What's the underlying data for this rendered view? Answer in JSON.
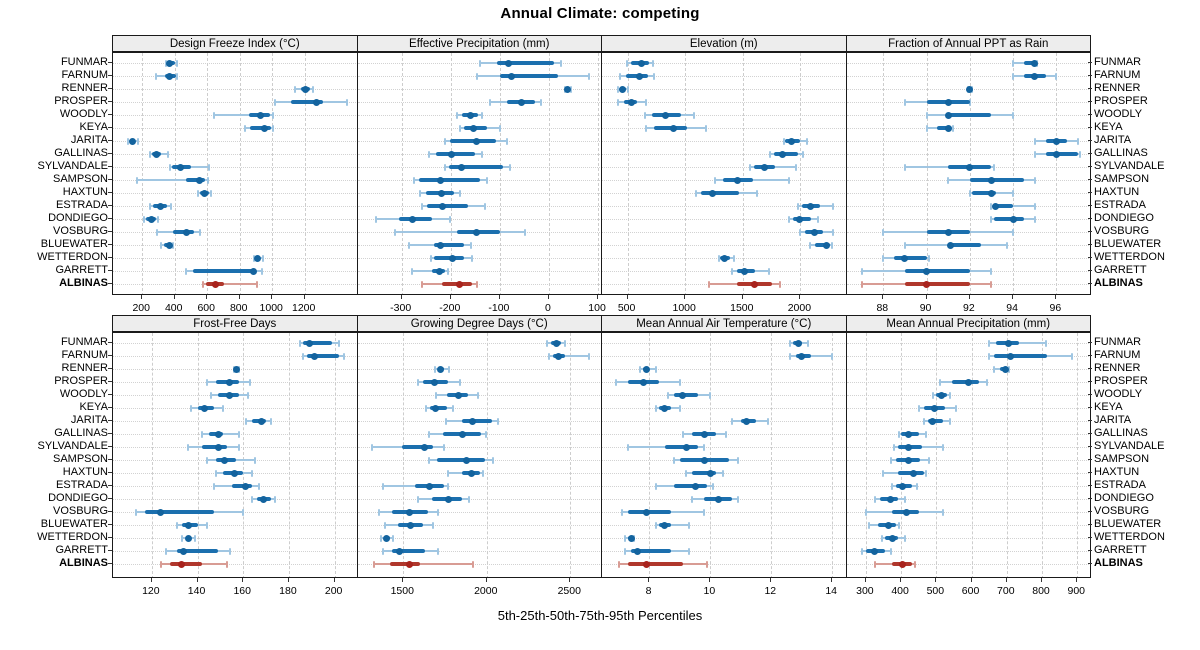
{
  "title": "Annual Climate: competing",
  "xlabel": "5th-25th-50th-75th-95th Percentiles",
  "percentiles": [
    5,
    25,
    50,
    75,
    95
  ],
  "sites": [
    "FUNMAR",
    "FARNUM",
    "RENNER",
    "PROSPER",
    "WOODLY",
    "KEYA",
    "JARITA",
    "GALLINAS",
    "SYLVANDALE",
    "SAMPSON",
    "HAXTUN",
    "ESTRADA",
    "DONDIEGO",
    "VOSBURG",
    "BLUEWATER",
    "WETTERDON",
    "GARRETT",
    "ALBINAS"
  ],
  "highlight_site": "ALBINAS",
  "colors": {
    "blue": "#1b6fae",
    "blue_light": "#a0c6e2",
    "blue_dot": "#13639e",
    "red": "#b0372c",
    "red_light": "#d89c94",
    "red_dot": "#a8231d",
    "strip_bg": "#ededed",
    "panel_border": "#1a1a1a",
    "grid_v": "#cdcdcd",
    "grid_h": "#d2d2d2",
    "axis": "#333333"
  },
  "chart_data": [
    {
      "type": "interval-dotplot",
      "row": 0,
      "col": 0,
      "title": "Design Freeze Index (°C)",
      "xlim": [
        20,
        1525
      ],
      "ticks": [
        200,
        400,
        600,
        800,
        1000,
        1200
      ],
      "values": {
        "FUNMAR": [
          345,
          355,
          370,
          400,
          415
        ],
        "FARNUM": [
          285,
          340,
          370,
          405,
          415
        ],
        "RENNER": [
          1140,
          1175,
          1205,
          1230,
          1250
        ],
        "PROSPER": [
          1020,
          1115,
          1270,
          1310,
          1460
        ],
        "WOODLY": [
          640,
          855,
          930,
          985,
          1005
        ],
        "KEYA": [
          830,
          865,
          955,
          995,
          1005
        ],
        "JARITA": [
          113,
          125,
          140,
          155,
          175
        ],
        "GALLINAS": [
          250,
          260,
          285,
          315,
          360
        ],
        "SYLVANDALE": [
          370,
          385,
          435,
          500,
          610
        ],
        "SAMPSON": [
          170,
          470,
          550,
          585,
          605
        ],
        "HAXTUN": [
          545,
          555,
          585,
          610,
          625
        ],
        "ESTRADA": [
          250,
          265,
          310,
          350,
          380
        ],
        "DONDIEGO": [
          210,
          225,
          258,
          285,
          300
        ],
        "VOSBURG": [
          290,
          390,
          475,
          520,
          555
        ],
        "BLUEWATER": [
          315,
          335,
          365,
          380,
          390
        ],
        "WETTERDON": [
          885,
          895,
          910,
          925,
          945
        ],
        "GARRETT": [
          470,
          515,
          885,
          900,
          935
        ],
        "ALBINAS": [
          575,
          595,
          650,
          705,
          905
        ]
      }
    },
    {
      "type": "interval-dotplot",
      "row": 0,
      "col": 1,
      "title": "Effective Precipitation (mm)",
      "xlim": [
        -390,
        108
      ],
      "ticks": [
        -300,
        -200,
        -100,
        0,
        100
      ],
      "values": {
        "FUNMAR": [
          -140,
          -105,
          -83,
          10,
          25
        ],
        "FARNUM": [
          -147,
          -100,
          -76,
          18,
          82
        ],
        "RENNER": [
          32,
          35,
          38,
          42,
          45
        ],
        "PROSPER": [
          -121,
          -86,
          -56,
          -29,
          -16
        ],
        "WOODLY": [
          -187,
          -177,
          -160,
          -145,
          -137
        ],
        "KEYA": [
          -181,
          -174,
          -154,
          -127,
          -100
        ],
        "JARITA": [
          -211,
          -201,
          -147,
          -107,
          -86
        ],
        "GALLINAS": [
          -245,
          -231,
          -199,
          -150,
          -137
        ],
        "SYLVANDALE": [
          -211,
          -204,
          -179,
          -93,
          -79
        ],
        "SAMPSON": [
          -274,
          -265,
          -220,
          -140,
          -127
        ],
        "HAXTUN": [
          -262,
          -251,
          -218,
          -194,
          -181
        ],
        "ESTRADA": [
          -258,
          -248,
          -216,
          -164,
          -130
        ],
        "DONDIEGO": [
          -353,
          -305,
          -278,
          -238,
          -201
        ],
        "VOSBURG": [
          -314,
          -187,
          -147,
          -100,
          -49
        ],
        "BLUEWATER": [
          -285,
          -235,
          -220,
          -174,
          -159
        ],
        "WETTERDON": [
          -241,
          -235,
          -196,
          -174,
          -157
        ],
        "GARRETT": [
          -280,
          -238,
          -223,
          -211,
          -206
        ],
        "ALBINAS": [
          -258,
          -218,
          -182,
          -157,
          -146
        ]
      }
    },
    {
      "type": "interval-dotplot",
      "row": 0,
      "col": 2,
      "title": "Elevation (m)",
      "xlim": [
        278,
        2400
      ],
      "ticks": [
        500,
        1000,
        1500,
        2000
      ],
      "values": {
        "FUNMAR": [
          495,
          530,
          625,
          685,
          720
        ],
        "FARNUM": [
          435,
          485,
          600,
          680,
          730
        ],
        "RENNER": [
          415,
          430,
          455,
          485,
          500
        ],
        "PROSPER": [
          420,
          470,
          535,
          585,
          660
        ],
        "WOODLY": [
          655,
          715,
          830,
          960,
          1075
        ],
        "KEYA": [
          660,
          730,
          895,
          1020,
          1180
        ],
        "JARITA": [
          1855,
          1870,
          1925,
          1995,
          2055
        ],
        "GALLINAS": [
          1740,
          1775,
          1845,
          1980,
          2025
        ],
        "SYLVANDALE": [
          1565,
          1600,
          1690,
          1780,
          1960
        ],
        "SAMPSON": [
          1255,
          1330,
          1450,
          1590,
          1905
        ],
        "HAXTUN": [
          1095,
          1135,
          1235,
          1465,
          1620
        ],
        "ESTRADA": [
          1980,
          2010,
          2090,
          2170,
          2285
        ],
        "DONDIEGO": [
          1900,
          1940,
          1995,
          2095,
          2155
        ],
        "VOSBURG": [
          1995,
          2040,
          2125,
          2200,
          2285
        ],
        "BLUEWATER": [
          2085,
          2125,
          2225,
          2255,
          2270
        ],
        "WETTERDON": [
          1290,
          1305,
          1345,
          1390,
          1420
        ],
        "GARRETT": [
          1405,
          1450,
          1515,
          1610,
          1725
        ],
        "ALBINAS": [
          1210,
          1450,
          1600,
          1750,
          1825
        ]
      }
    },
    {
      "type": "interval-dotplot",
      "row": 0,
      "col": 3,
      "title": "Fraction of Annual PPT as Rain",
      "xlim": [
        86.3,
        97.6
      ],
      "ticks": [
        88,
        90,
        92,
        94,
        96
      ],
      "values": {
        "FUNMAR": [
          94,
          94.5,
          95,
          95,
          95.1
        ],
        "FARNUM": [
          94,
          94.5,
          95,
          95.5,
          96
        ],
        "RENNER": [
          91.9,
          92,
          92,
          92,
          92.1
        ],
        "PROSPER": [
          89,
          90,
          91,
          92,
          92
        ],
        "WOODLY": [
          90,
          91,
          91,
          93,
          94
        ],
        "KEYA": [
          90,
          90.5,
          91,
          91,
          91.2
        ],
        "JARITA": [
          95,
          95.5,
          96,
          96.5,
          97
        ],
        "GALLINAS": [
          95,
          95.5,
          96,
          97,
          97.1
        ],
        "SYLVANDALE": [
          89,
          91,
          92,
          93,
          93.1
        ],
        "SAMPSON": [
          91,
          92,
          93,
          94.5,
          95
        ],
        "HAXTUN": [
          92,
          92.1,
          93,
          93.2,
          94
        ],
        "ESTRADA": [
          93,
          93.1,
          93.2,
          94,
          95
        ],
        "DONDIEGO": [
          93,
          93.1,
          94,
          94.5,
          95
        ],
        "VOSBURG": [
          88,
          90,
          91,
          92,
          94
        ],
        "BLUEWATER": [
          89,
          91,
          91.1,
          92.5,
          93.7
        ],
        "WETTERDON": [
          88,
          88.5,
          89,
          90,
          90.1
        ],
        "GARRETT": [
          87,
          89,
          90,
          92,
          93
        ],
        "ALBINAS": [
          87,
          89,
          90,
          92,
          93
        ]
      }
    },
    {
      "type": "interval-dotplot",
      "row": 1,
      "col": 0,
      "title": "Frost-Free Days",
      "xlim": [
        103,
        210
      ],
      "ticks": [
        120,
        140,
        160,
        180,
        200
      ],
      "values": {
        "FUNMAR": [
          185,
          186,
          189,
          199,
          202
        ],
        "FARNUM": [
          186,
          188,
          191,
          202,
          204
        ],
        "RENNER": [
          156,
          156.5,
          157,
          157.5,
          158
        ],
        "PROSPER": [
          144,
          148,
          154,
          158,
          163
        ],
        "WOODLY": [
          146,
          149,
          154,
          158,
          162
        ],
        "KEYA": [
          137,
          140,
          143,
          147,
          151
        ],
        "JARITA": [
          161,
          164,
          168,
          170,
          172
        ],
        "GALLINAS": [
          142,
          145,
          149,
          151,
          158
        ],
        "SYLVANDALE": [
          136,
          142,
          149,
          153,
          158
        ],
        "SAMPSON": [
          144,
          148,
          152,
          157,
          165
        ],
        "HAXTUN": [
          148,
          151,
          156,
          160,
          164
        ],
        "ESTRADA": [
          147,
          155,
          161,
          164,
          167
        ],
        "DONDIEGO": [
          164,
          166,
          169,
          172,
          174
        ],
        "VOSBURG": [
          113,
          117,
          124,
          147,
          160
        ],
        "BLUEWATER": [
          131,
          133,
          136,
          140,
          144
        ],
        "WETTERDON": [
          133,
          135,
          136,
          137,
          139
        ],
        "GARRETT": [
          126,
          131,
          134,
          149,
          154
        ],
        "ALBINAS": [
          124,
          128,
          133,
          142,
          153
        ]
      }
    },
    {
      "type": "interval-dotplot",
      "row": 1,
      "col": 1,
      "title": "Growing Degree Days (°C)",
      "xlim": [
        1226,
        2690
      ],
      "ticks": [
        1500,
        2000,
        2500
      ],
      "values": {
        "FUNMAR": [
          2360,
          2385,
          2415,
          2445,
          2470
        ],
        "FARNUM": [
          2370,
          2395,
          2430,
          2470,
          2610
        ],
        "RENNER": [
          1690,
          1710,
          1725,
          1745,
          1775
        ],
        "PROSPER": [
          1590,
          1620,
          1690,
          1770,
          1840
        ],
        "WOODLY": [
          1695,
          1760,
          1830,
          1890,
          1945
        ],
        "KEYA": [
          1635,
          1660,
          1695,
          1760,
          1800
        ],
        "JARITA": [
          1755,
          1850,
          1915,
          2030,
          2065
        ],
        "GALLINAS": [
          1655,
          1735,
          1855,
          1965,
          1995
        ],
        "SYLVANDALE": [
          1315,
          1490,
          1630,
          1680,
          1745
        ],
        "SAMPSON": [
          1655,
          1705,
          1880,
          1990,
          2040
        ],
        "HAXTUN": [
          1765,
          1850,
          1910,
          1960,
          1975
        ],
        "ESTRADA": [
          1380,
          1570,
          1655,
          1745,
          1770
        ],
        "DONDIEGO": [
          1590,
          1670,
          1770,
          1850,
          1895
        ],
        "VOSBURG": [
          1355,
          1430,
          1535,
          1650,
          1710
        ],
        "BLUEWATER": [
          1390,
          1470,
          1545,
          1620,
          1680
        ],
        "WETTERDON": [
          1365,
          1385,
          1400,
          1420,
          1440
        ],
        "GARRETT": [
          1380,
          1430,
          1480,
          1630,
          1710
        ],
        "ALBINAS": [
          1325,
          1420,
          1535,
          1600,
          1915
        ]
      }
    },
    {
      "type": "interval-dotplot",
      "row": 1,
      "col": 2,
      "title": "Mean Annual Air Temperature (°C)",
      "xlim": [
        6.44,
        14.47
      ],
      "ticks": [
        8,
        10,
        12,
        14
      ],
      "values": {
        "FUNMAR": [
          12.6,
          12.7,
          12.9,
          13.0,
          13.2
        ],
        "FARNUM": [
          12.6,
          12.8,
          13.0,
          13.3,
          14.0
        ],
        "RENNER": [
          7.7,
          7.8,
          7.9,
          8.0,
          8.2
        ],
        "PROSPER": [
          6.9,
          7.3,
          7.8,
          8.3,
          9.0
        ],
        "WOODLY": [
          8.6,
          8.8,
          9.1,
          9.6,
          10.0
        ],
        "KEYA": [
          8.2,
          8.3,
          8.5,
          8.7,
          9.0
        ],
        "JARITA": [
          10.7,
          11.0,
          11.2,
          11.5,
          11.9
        ],
        "GALLINAS": [
          9.1,
          9.4,
          9.8,
          10.2,
          10.5
        ],
        "SYLVANDALE": [
          7.3,
          8.5,
          9.2,
          9.6,
          9.8
        ],
        "SAMPSON": [
          8.8,
          9.0,
          9.8,
          10.6,
          10.9
        ],
        "HAXTUN": [
          9.2,
          9.4,
          10.0,
          10.2,
          10.4
        ],
        "ESTRADA": [
          8.2,
          8.8,
          9.5,
          9.9,
          10.1
        ],
        "DONDIEGO": [
          9.4,
          9.8,
          10.25,
          10.7,
          10.9
        ],
        "VOSBURG": [
          7.1,
          7.3,
          7.9,
          8.7,
          9.8
        ],
        "BLUEWATER": [
          8.2,
          8.3,
          8.5,
          8.7,
          9.3
        ],
        "WETTERDON": [
          7.2,
          7.3,
          7.4,
          7.45,
          7.5
        ],
        "GARRETT": [
          7.2,
          7.4,
          7.6,
          8.7,
          9.3
        ],
        "ALBINAS": [
          7.0,
          7.3,
          7.9,
          9.1,
          9.9
        ]
      }
    },
    {
      "type": "interval-dotplot",
      "row": 1,
      "col": 3,
      "title": "Mean Annual Precipitation (mm)",
      "xlim": [
        245,
        939
      ],
      "ticks": [
        300,
        400,
        500,
        600,
        700,
        800,
        900
      ],
      "values": {
        "FUNMAR": [
          650,
          670,
          705,
          735,
          810
        ],
        "FARNUM": [
          650,
          665,
          710,
          815,
          885
        ],
        "RENNER": [
          665,
          680,
          695,
          700,
          705
        ],
        "PROSPER": [
          510,
          545,
          590,
          620,
          645
        ],
        "WOODLY": [
          490,
          500,
          515,
          530,
          540
        ],
        "KEYA": [
          450,
          465,
          495,
          525,
          555
        ],
        "JARITA": [
          465,
          475,
          490,
          520,
          540
        ],
        "GALLINAS": [
          395,
          400,
          420,
          450,
          470
        ],
        "SYLVANDALE": [
          380,
          390,
          420,
          460,
          520
        ],
        "SAMPSON": [
          370,
          385,
          420,
          455,
          480
        ],
        "HAXTUN": [
          350,
          390,
          435,
          465,
          470
        ],
        "ESTRADA": [
          375,
          385,
          405,
          430,
          445
        ],
        "DONDIEGO": [
          325,
          340,
          370,
          390,
          410
        ],
        "VOSBURG": [
          300,
          375,
          415,
          450,
          520
        ],
        "BLUEWATER": [
          310,
          335,
          365,
          385,
          395
        ],
        "WETTERDON": [
          345,
          355,
          375,
          390,
          410
        ],
        "GARRETT": [
          290,
          300,
          325,
          355,
          370
        ],
        "ALBINAS": [
          325,
          375,
          405,
          430,
          440
        ]
      }
    }
  ]
}
